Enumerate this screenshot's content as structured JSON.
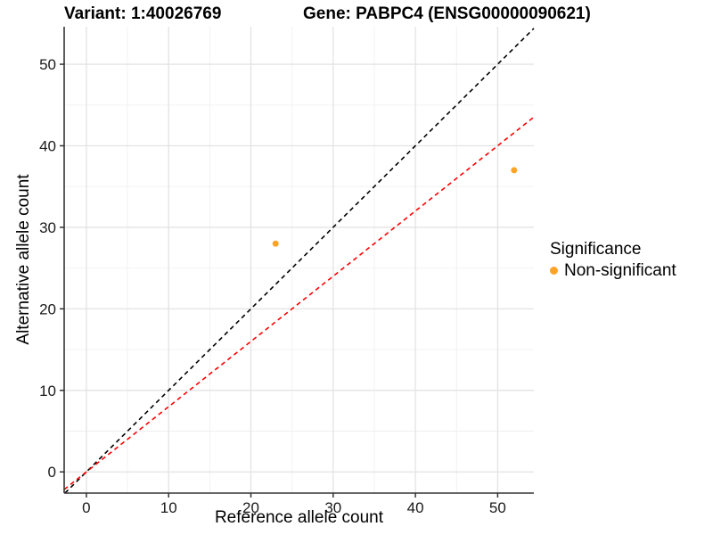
{
  "titles": {
    "variant": "Variant: 1:40026769",
    "gene": "Gene: PABPC4 (ENSG00000090621)"
  },
  "colors": {
    "point_orange": "#FDA428",
    "line_red": "#FF0000",
    "line_black": "#000000",
    "grid_major": "#E3E3E3",
    "grid_minor": "#F0F0F0",
    "axis_line": "#333333",
    "tick_label": "#1A1A1A"
  },
  "chart_data": {
    "type": "scatter",
    "xlabel": "Reference allele count",
    "ylabel": "Alternative allele count",
    "xlim": [
      -2.7,
      54.4
    ],
    "ylim": [
      -2.6,
      54.6
    ],
    "x_ticks": [
      0,
      10,
      20,
      30,
      40,
      50
    ],
    "y_ticks": [
      0,
      10,
      20,
      30,
      40,
      50
    ],
    "x_minor_ticks": [
      5,
      15,
      25,
      35,
      45
    ],
    "y_minor_ticks": [
      5,
      15,
      25,
      35,
      45
    ],
    "grid": true,
    "points": [
      {
        "x": 23,
        "y": 28,
        "series": "Non-significant"
      },
      {
        "x": 52,
        "y": 37,
        "series": "Non-significant"
      }
    ],
    "lines": [
      {
        "name": "identity-line",
        "slope": 1.0,
        "intercept": 0,
        "color": "#000000",
        "style": "dashed"
      },
      {
        "name": "fit-line",
        "slope": 0.8,
        "intercept": 0,
        "color": "#FF0000",
        "style": "dashed"
      }
    ],
    "legend": {
      "title": "Significance",
      "position": "right",
      "entries": [
        {
          "label": "Non-significant",
          "color": "#FDA428"
        }
      ]
    }
  }
}
